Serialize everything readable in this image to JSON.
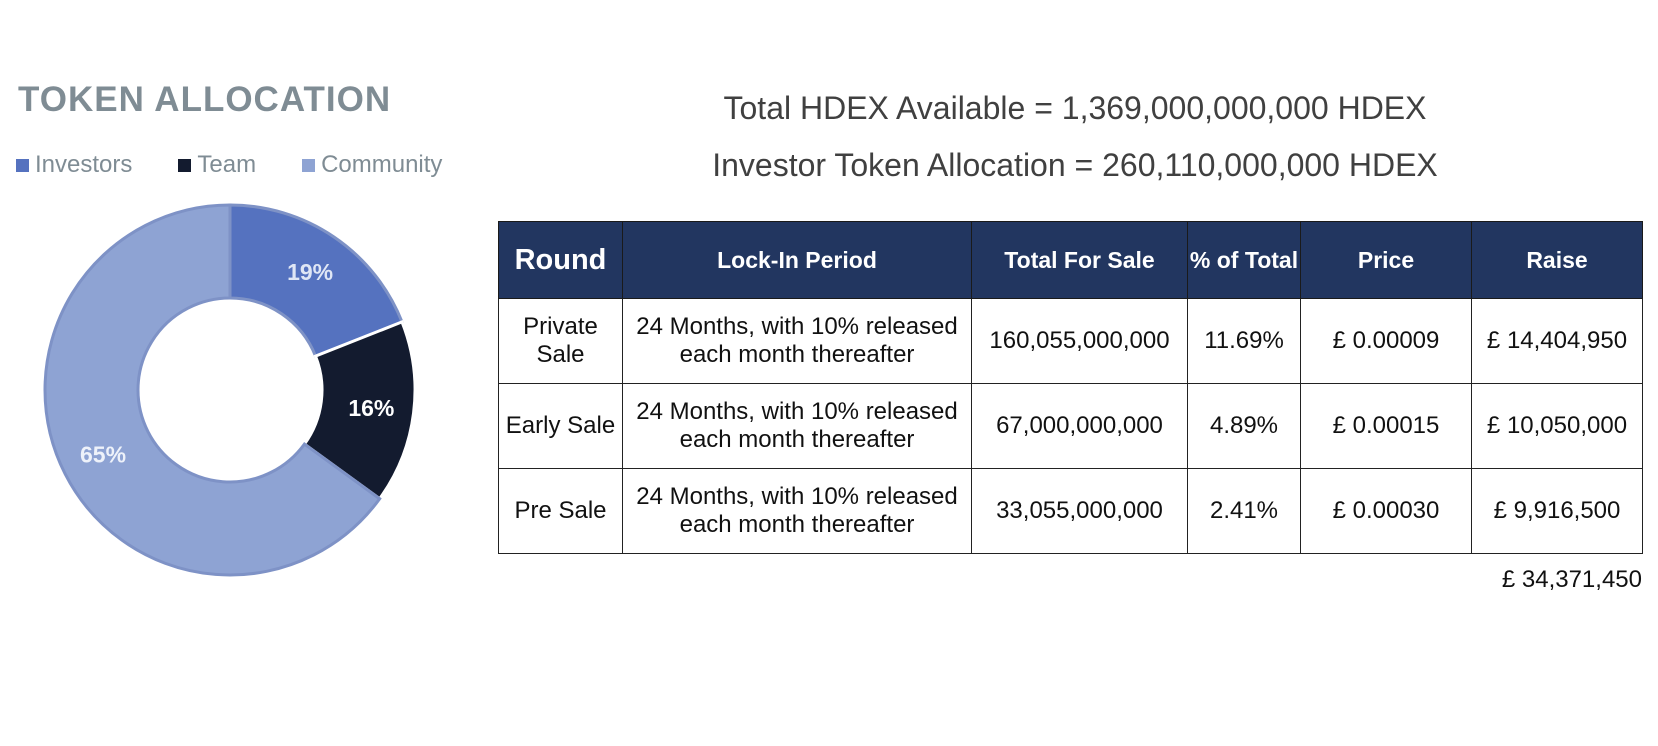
{
  "title": "TOKEN ALLOCATION",
  "headline": {
    "total": "Total HDEX Available = 1,369,000,000,000 HDEX",
    "investor": "Investor Token Allocation = 260,110,000,000 HDEX"
  },
  "colors": {
    "investors": "#5572bf",
    "team": "#131b2f",
    "community": "#8ea3d3",
    "header_bg": "#223660"
  },
  "chart_data": {
    "type": "pie",
    "title": "TOKEN ALLOCATION",
    "legend_position": "top",
    "series": [
      {
        "name": "Investors",
        "value": 19,
        "label": "19%",
        "color": "#5572bf"
      },
      {
        "name": "Team",
        "value": 16,
        "label": "16%",
        "color": "#131b2f"
      },
      {
        "name": "Community",
        "value": 65,
        "label": "65%",
        "color": "#8ea3d3"
      }
    ]
  },
  "table": {
    "headers": [
      "Round",
      "Lock-In Period",
      "Total For Sale",
      "% of Total",
      "Price",
      "Raise"
    ],
    "rows": [
      {
        "round": "Private Sale",
        "lock": "24 Months, with 10% released each month thereafter",
        "total": "160,055,000,000",
        "pct": "11.69%",
        "price": "£ 0.00009",
        "raise": "£ 14,404,950"
      },
      {
        "round": "Early Sale",
        "lock": "24 Months, with 10% released each month thereafter",
        "total": "67,000,000,000",
        "pct": "4.89%",
        "price": "£ 0.00015",
        "raise": "£ 10,050,000"
      },
      {
        "round": "Pre Sale",
        "lock": "24 Months, with 10% released each month thereafter",
        "total": "33,055,000,000",
        "pct": "2.41%",
        "price": "£ 0.00030",
        "raise": "£ 9,916,500"
      }
    ],
    "total_raise": "£ 34,371,450"
  }
}
